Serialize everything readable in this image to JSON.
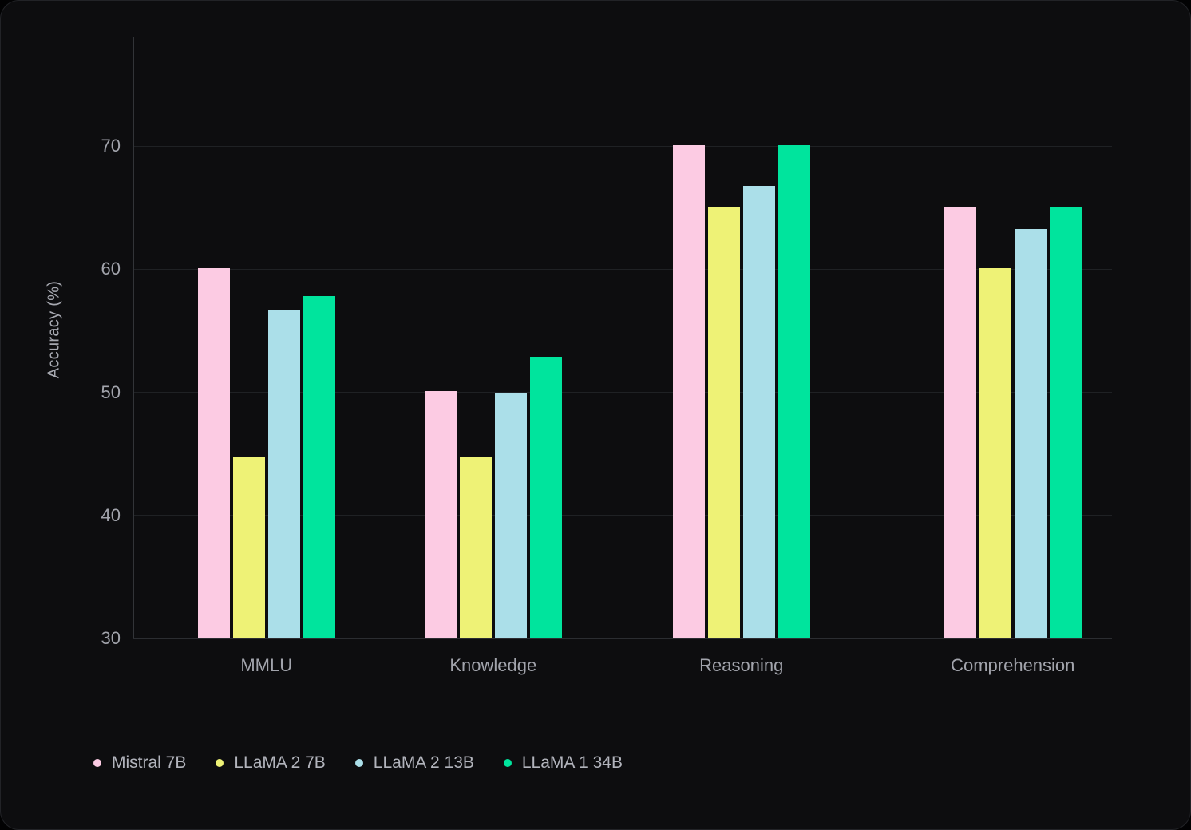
{
  "chart_data": {
    "type": "bar",
    "title": "",
    "xlabel": "",
    "ylabel": "Accuracy (%)",
    "categories": [
      "MMLU",
      "Knowledge",
      "Reasoning",
      "Comprehension"
    ],
    "series": [
      {
        "name": "Mistral 7B",
        "color": "#FCCBE3",
        "values": [
          60.1,
          50.1,
          70.1,
          65.1
        ]
      },
      {
        "name": "LLaMA 2 7B",
        "color": "#EEF276",
        "values": [
          44.7,
          44.7,
          65.1,
          60.1
        ]
      },
      {
        "name": "LLaMA 2 13B",
        "color": "#ABDFE9",
        "values": [
          56.7,
          50.0,
          66.8,
          63.3
        ]
      },
      {
        "name": "LLaMA 1 34B",
        "color": "#00E49D",
        "values": [
          57.8,
          52.9,
          70.1,
          65.1
        ]
      }
    ],
    "yticks": [
      30,
      40,
      50,
      60,
      70
    ],
    "ylim": [
      30,
      72.5
    ],
    "grid": true,
    "legend_position": "bottom-left",
    "colors": {
      "background": "#0D0D0F",
      "gridline": "#1F2124",
      "axis_line": "#323438",
      "tick_text": "#A2A4AC",
      "legend_text": "#B2B4BC"
    }
  }
}
